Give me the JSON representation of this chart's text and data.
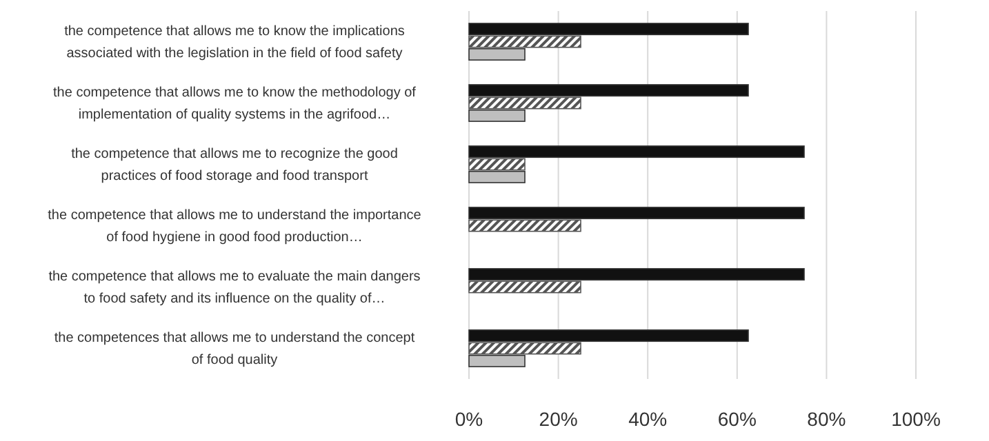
{
  "chart_data": {
    "type": "bar",
    "orientation": "horizontal",
    "categories": [
      "the competence that allows me to know the implications associated with the legislation in the field of food safety",
      "the competence that allows me to know the methodology of implementation of quality systems in the agrifood…",
      "the competence that allows me to recognize the good practices of food storage and food transport",
      "the competence that allows me to understand the importance of food hygiene in good food production…",
      "the competence that allows me to evaluate the main dangers to food safety and its influence on the quality of…",
      "the competences that allows me to understand the concept of food quality"
    ],
    "series": [
      {
        "color": "#111111",
        "values": [
          62.5,
          62.5,
          75,
          75,
          75,
          62.5
        ]
      },
      {
        "color": "#555555",
        "values": [
          25,
          25,
          12.5,
          25,
          25,
          25
        ]
      },
      {
        "color": "#bfbfbf",
        "values": [
          12.5,
          12.5,
          12.5,
          0,
          0,
          12.5
        ]
      }
    ],
    "xlim": [
      0,
      100
    ],
    "xticks": [
      {
        "value": 0,
        "label": "0%"
      },
      {
        "value": 20,
        "label": "20%"
      },
      {
        "value": 40,
        "label": "40%"
      },
      {
        "value": 60,
        "label": "60%"
      },
      {
        "value": 80,
        "label": "80%"
      },
      {
        "value": 100,
        "label": "100%"
      }
    ],
    "grid": "x",
    "legend": false
  }
}
